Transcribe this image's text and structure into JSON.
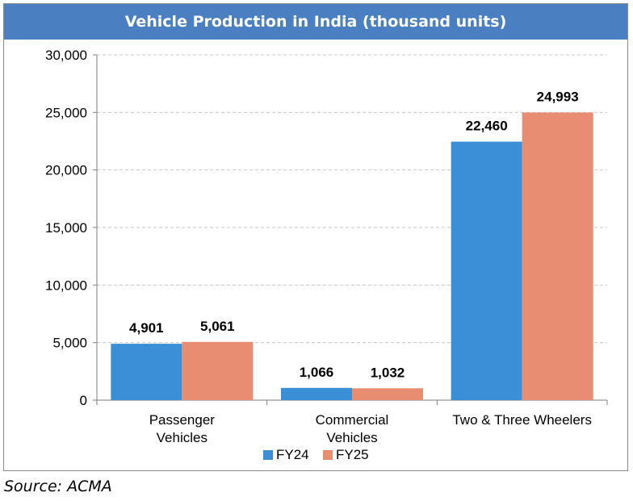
{
  "chart_data": {
    "type": "bar",
    "title": "Vehicle Production in India (thousand units)",
    "categories": [
      [
        "Passenger",
        "Vehicles"
      ],
      [
        "Commercial",
        "Vehicles"
      ],
      [
        "Two & Three Wheelers"
      ]
    ],
    "series": [
      {
        "name": "FY24",
        "values": [
          4901,
          1066,
          22460
        ],
        "labels": [
          "4,901",
          "1,066",
          "22,460"
        ],
        "color": "#3a8fd6"
      },
      {
        "name": "FY25",
        "values": [
          5061,
          1032,
          24993
        ],
        "labels": [
          "5,061",
          "1,032",
          "24,993"
        ],
        "color": "#e88c72"
      }
    ],
    "ylim": [
      0,
      30000
    ],
    "yticks": [
      "0",
      "5,000",
      "10,000",
      "15,000",
      "20,000",
      "25,000",
      "30,000"
    ],
    "grid": "dashed horizontal",
    "legend": "bottom",
    "title_bg": "#4a7fc1"
  },
  "source": "Source: ACMA"
}
